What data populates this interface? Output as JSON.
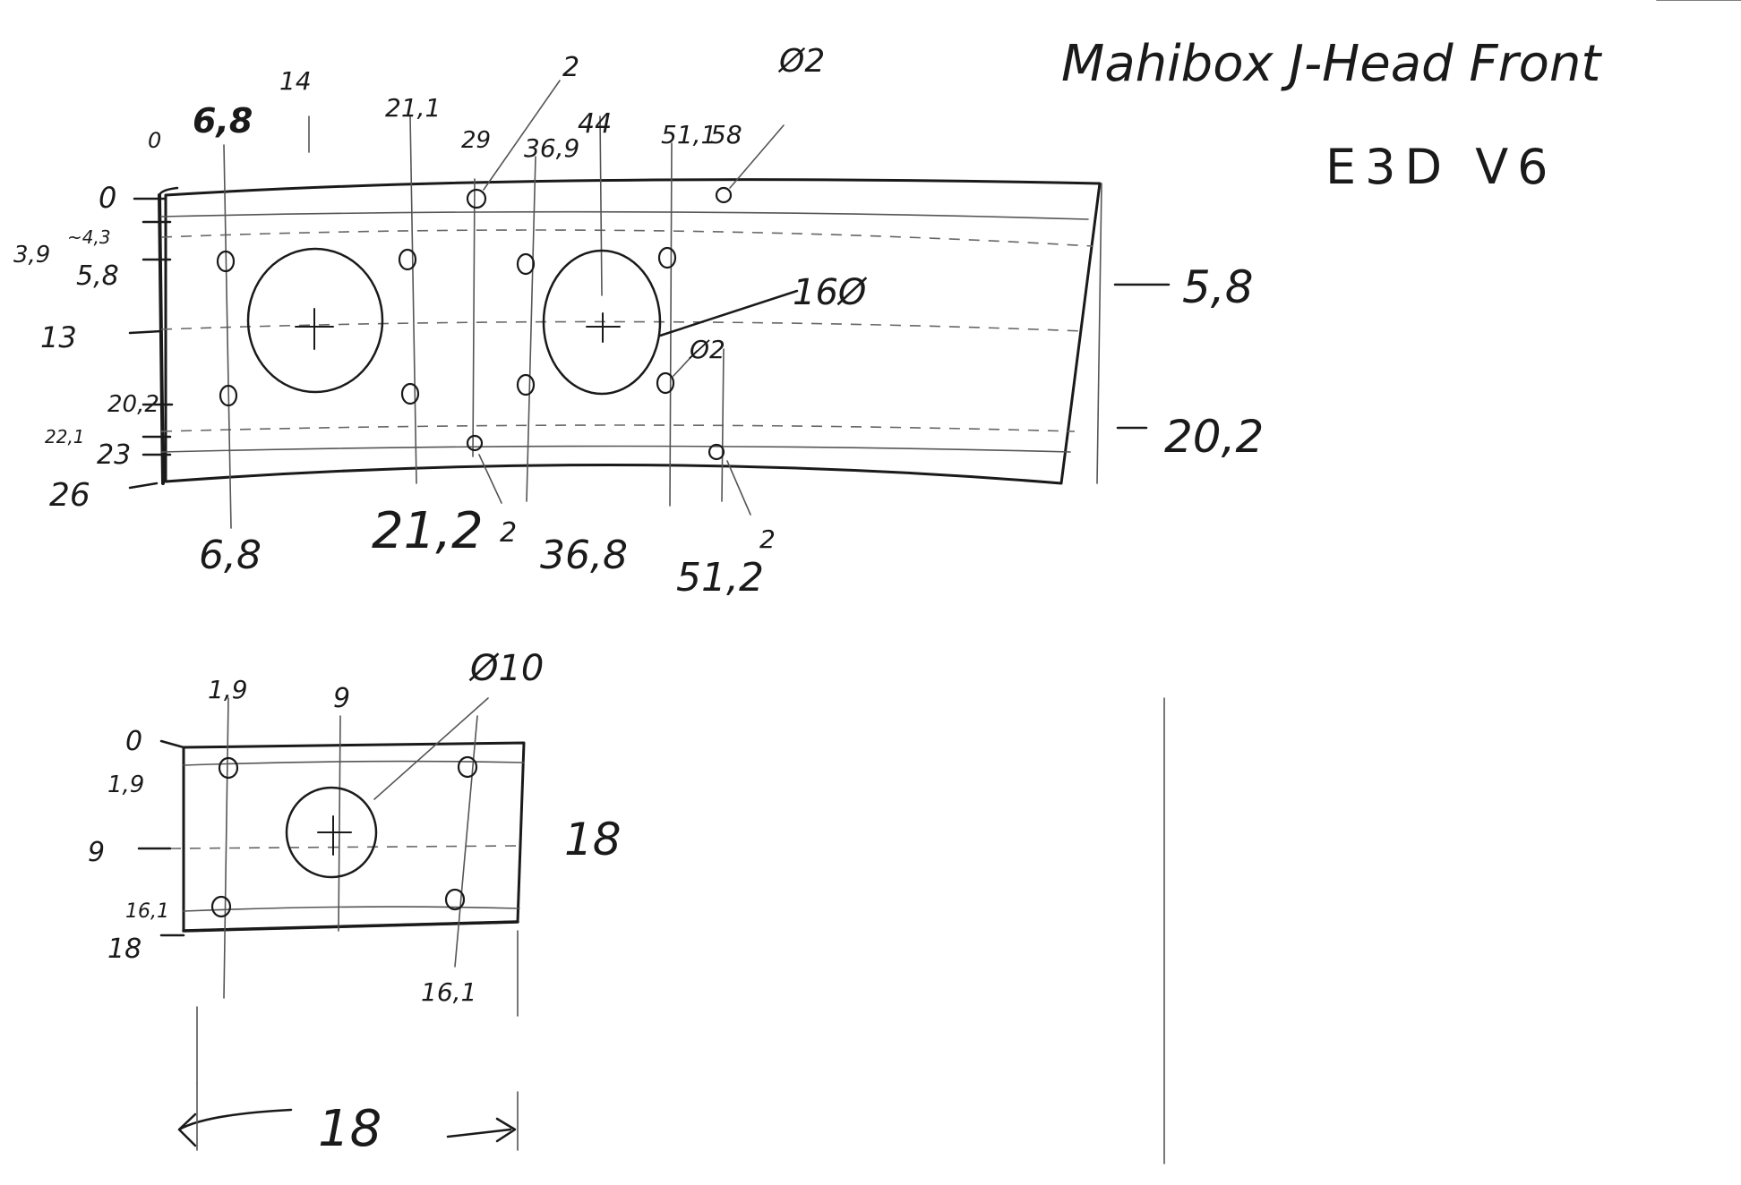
{
  "title": {
    "line1": "Mahibox J-Head Front",
    "line2": "E3D V6"
  },
  "plate1": {
    "x_labels": [
      "0",
      "6,8",
      "14",
      "21,1",
      "29",
      "36,9",
      "44",
      "51,1",
      "58"
    ],
    "y_labels": [
      "0",
      "3,9",
      "~4,3",
      "5,8",
      "13",
      "20,2",
      "22,1",
      "23",
      "26"
    ],
    "bottom_labels": [
      "6,8",
      "21,2",
      "36,8",
      "51,2"
    ],
    "right_labels": [
      "5,8",
      "20,2"
    ],
    "hole_callouts": [
      "2",
      "Ø2",
      "16Ø",
      "Ø2",
      "2",
      "2"
    ]
  },
  "plate2": {
    "x_labels": [
      "1,9",
      "9",
      "16,1"
    ],
    "y_labels": [
      "0",
      "1,9",
      "9",
      "16,1",
      "18"
    ],
    "right_label": "18",
    "bottom_dimension": "18",
    "hole_callout": "Ø10"
  }
}
